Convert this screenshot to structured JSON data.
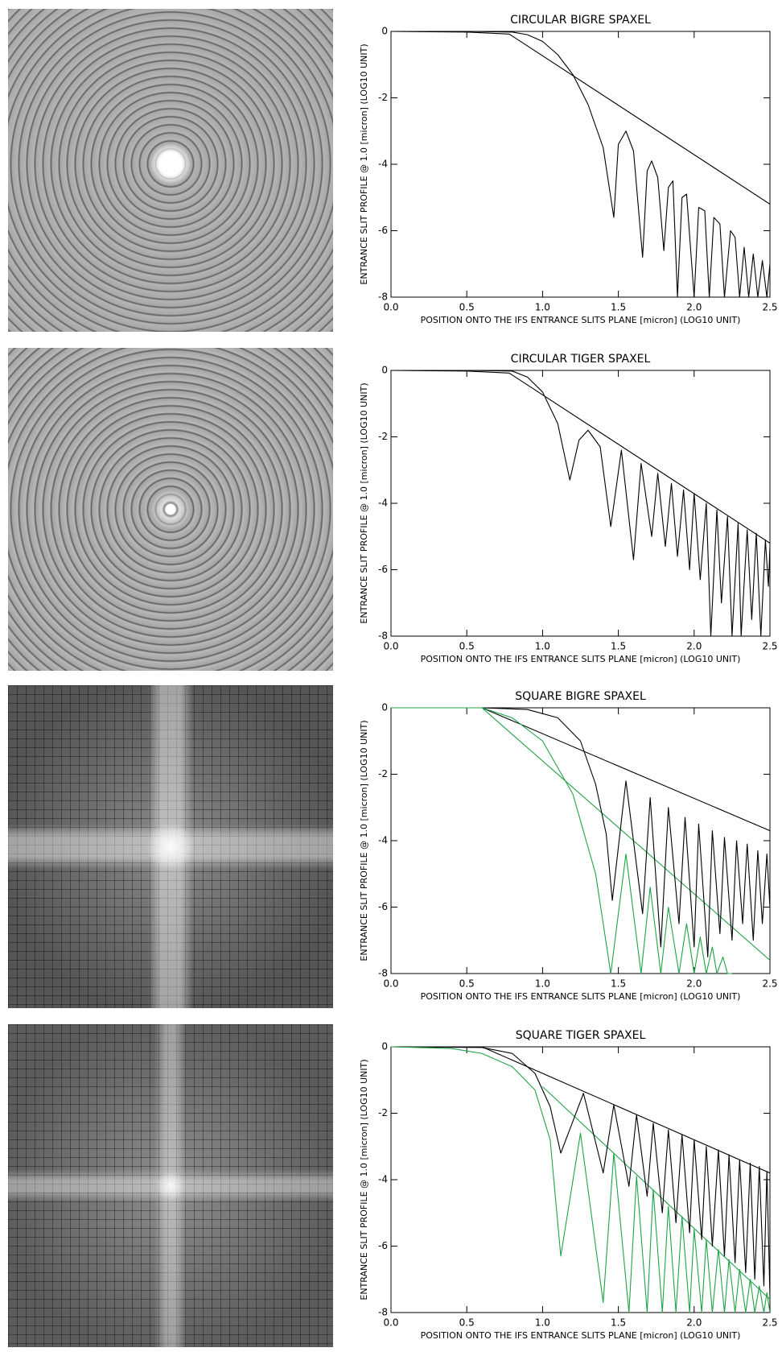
{
  "chart_data": [
    {
      "type": "line",
      "title": "CIRCULAR BIGRE SPAXEL",
      "x_label": "POSITION ONTO THE IFS ENTRANCE SLITS PLANE [micron] (LOG10 UNIT)",
      "y_label": "ENTRANCE SLIT PROFILE @ 1.0 [micron] (LOG10 UNIT)",
      "xlim": [
        0,
        2.5
      ],
      "ylim": [
        -8,
        0
      ],
      "xticks": [
        {
          "value": 0,
          "label": "0.0"
        },
        0.5,
        {
          "value": 1,
          "label": "1.0"
        },
        1.5,
        {
          "value": 2,
          "label": "2.0"
        },
        2.5
      ],
      "yticks": [
        0,
        -2,
        -4,
        -6,
        -8
      ],
      "series": [
        {
          "color": "#000000",
          "x": [
            0,
            0.5,
            0.78,
            2.5
          ],
          "values": [
            0,
            -0.02,
            -0.08,
            -5.2
          ]
        },
        {
          "color": "#000000",
          "x": [
            0,
            0.5,
            0.8,
            0.9,
            1.0,
            1.1,
            1.2,
            1.3,
            1.4,
            1.47,
            1.5,
            1.55,
            1.6,
            1.66,
            1.69,
            1.72,
            1.76,
            1.8,
            1.83,
            1.86,
            1.89,
            1.92,
            1.95,
            2.0,
            2.03,
            2.07,
            2.1,
            2.13,
            2.17,
            2.2,
            2.24,
            2.27,
            2.3,
            2.33,
            2.36,
            2.39,
            2.42,
            2.45,
            2.48,
            2.5
          ],
          "values": [
            0,
            0,
            -0.02,
            -0.1,
            -0.3,
            -0.7,
            -1.3,
            -2.2,
            -3.5,
            -5.6,
            -3.4,
            -3.0,
            -3.6,
            -6.8,
            -4.2,
            -3.9,
            -4.4,
            -6.6,
            -4.7,
            -4.5,
            -8,
            -5.0,
            -4.9,
            -8,
            -5.3,
            -5.4,
            -8,
            -5.6,
            -5.8,
            -8,
            -6.0,
            -6.2,
            -8,
            -6.5,
            -8,
            -6.7,
            -8,
            -6.9,
            -8,
            -7.0
          ]
        }
      ]
    },
    {
      "type": "line",
      "title": "CIRCULAR TIGER SPAXEL",
      "x_label": "POSITION ONTO THE IFS ENTRANCE SLITS PLANE [micron] (LOG10 UNIT)",
      "y_label": "ENTRANCE SLIT PROFILE @ 1.0 [micron] (LOG10 UNIT)",
      "xlim": [
        0,
        2.5
      ],
      "ylim": [
        -8,
        0
      ],
      "xticks": [
        {
          "value": 0,
          "label": "0.0"
        },
        0.5,
        {
          "value": 1,
          "label": "1.0"
        },
        1.5,
        {
          "value": 2,
          "label": "2.0"
        },
        2.5
      ],
      "yticks": [
        0,
        -2,
        -4,
        -6,
        -8
      ],
      "series": [
        {
          "color": "#000000",
          "x": [
            0,
            0.5,
            0.78,
            2.5
          ],
          "values": [
            0,
            -0.02,
            -0.08,
            -5.2
          ]
        },
        {
          "color": "#000000",
          "x": [
            0,
            0.5,
            0.8,
            0.9,
            1.0,
            1.1,
            1.18,
            1.24,
            1.3,
            1.38,
            1.45,
            1.52,
            1.6,
            1.65,
            1.72,
            1.76,
            1.81,
            1.85,
            1.89,
            1.93,
            1.97,
            2.0,
            2.04,
            2.08,
            2.11,
            2.15,
            2.18,
            2.22,
            2.25,
            2.29,
            2.31,
            2.35,
            2.38,
            2.41,
            2.44,
            2.47,
            2.49,
            2.5
          ],
          "values": [
            0,
            0,
            -0.02,
            -0.2,
            -0.65,
            -1.6,
            -3.3,
            -2.1,
            -1.8,
            -2.3,
            -4.7,
            -2.4,
            -5.7,
            -2.8,
            -5.0,
            -3.1,
            -5.3,
            -3.4,
            -5.6,
            -3.6,
            -6.0,
            -3.7,
            -6.3,
            -4.0,
            -8,
            -4.2,
            -7.0,
            -4.4,
            -8,
            -4.6,
            -8,
            -4.8,
            -7.5,
            -4.9,
            -8,
            -5.1,
            -6.5,
            -5.3
          ]
        }
      ]
    },
    {
      "type": "line",
      "title": "SQUARE BIGRE SPAXEL",
      "x_label": "POSITION ONTO THE IFS ENTRANCE SLITS PLANE [micron] (LOG10 UNIT)",
      "y_label": "ENTRANCE SLIT PROFILE @ 1.0 [micron] (LOG10 UNIT)",
      "xlim": [
        0,
        2.5
      ],
      "ylim": [
        -8,
        0
      ],
      "xticks": [
        {
          "value": 0,
          "label": "0.0"
        },
        0.5,
        {
          "value": 1,
          "label": "1.0"
        },
        1.5,
        {
          "value": 2,
          "label": "2.0"
        },
        2.5
      ],
      "yticks": [
        0,
        -2,
        -4,
        -6,
        -8
      ],
      "series": [
        {
          "color": "#000000",
          "x": [
            0,
            0.6,
            2.5
          ],
          "values": [
            0,
            0,
            -3.7
          ]
        },
        {
          "color": "#1fa347",
          "x": [
            0,
            0.6,
            2.5
          ],
          "values": [
            0,
            0,
            -7.6
          ]
        },
        {
          "color": "#000000",
          "x": [
            0,
            0.6,
            0.9,
            1.1,
            1.25,
            1.35,
            1.42,
            1.46,
            1.55,
            1.66,
            1.71,
            1.78,
            1.83,
            1.9,
            1.94,
            2.0,
            2.03,
            2.09,
            2.12,
            2.17,
            2.2,
            2.25,
            2.28,
            2.32,
            2.35,
            2.39,
            2.42,
            2.45,
            2.48,
            2.5
          ],
          "values": [
            0,
            0,
            -0.05,
            -0.3,
            -1.0,
            -2.3,
            -3.8,
            -5.8,
            -2.2,
            -6.2,
            -2.7,
            -7.2,
            -3.0,
            -6.5,
            -3.3,
            -7.2,
            -3.5,
            -7.5,
            -3.7,
            -6.8,
            -3.9,
            -7.0,
            -4.0,
            -6.5,
            -4.1,
            -7.0,
            -4.3,
            -6.5,
            -4.4,
            -6.0
          ]
        },
        {
          "color": "#1fa347",
          "x": [
            0,
            0.6,
            0.8,
            1.0,
            1.2,
            1.35,
            1.45,
            1.55,
            1.65,
            1.71,
            1.78,
            1.83,
            1.9,
            1.95,
            2.0,
            2.04,
            2.08,
            2.12,
            2.15,
            2.19,
            2.22,
            2.25
          ],
          "values": [
            0,
            0,
            -0.3,
            -1.0,
            -2.6,
            -5.0,
            -8,
            -4.4,
            -8,
            -5.4,
            -8,
            -6.0,
            -8,
            -6.5,
            -8,
            -6.9,
            -8,
            -7.2,
            -8,
            -7.5,
            -8,
            -8
          ]
        }
      ]
    },
    {
      "type": "line",
      "title": "SQUARE TIGER SPAXEL",
      "x_label": "POSITION ONTO THE IFS ENTRANCE SLITS PLANE [micron] (LOG10 UNIT)",
      "y_label": "ENTRANCE SLIT PROFILE @ 1.0 [micron] (LOG10 UNIT)",
      "xlim": [
        0,
        2.5
      ],
      "ylim": [
        -8,
        0
      ],
      "xticks": [
        {
          "value": 0,
          "label": "0.0"
        },
        0.5,
        {
          "value": 1,
          "label": "1.0"
        },
        1.5,
        {
          "value": 2,
          "label": "2.0"
        },
        2.5
      ],
      "yticks": [
        0,
        -2,
        -4,
        -6,
        -8
      ],
      "series": [
        {
          "color": "#000000",
          "x": [
            0,
            0.6,
            2.5
          ],
          "values": [
            0,
            0,
            -3.8
          ]
        },
        {
          "color": "#1fa347",
          "x": [
            1.0,
            2.5
          ],
          "values": [
            -1.2,
            -7.6
          ]
        },
        {
          "color": "#000000",
          "x": [
            0,
            0.6,
            0.8,
            0.95,
            1.05,
            1.12,
            1.27,
            1.4,
            1.47,
            1.57,
            1.62,
            1.69,
            1.73,
            1.79,
            1.83,
            1.88,
            1.92,
            1.97,
            2.0,
            2.05,
            2.08,
            2.12,
            2.16,
            2.2,
            2.23,
            2.27,
            2.3,
            2.34,
            2.37,
            2.4,
            2.43,
            2.46,
            2.48,
            2.5
          ],
          "values": [
            0,
            -0.02,
            -0.2,
            -0.8,
            -1.8,
            -3.2,
            -1.4,
            -3.8,
            -1.75,
            -4.2,
            -2.05,
            -4.5,
            -2.3,
            -5.0,
            -2.5,
            -5.3,
            -2.65,
            -5.6,
            -2.8,
            -5.8,
            -3.0,
            -6.0,
            -3.1,
            -6.3,
            -3.25,
            -6.5,
            -3.4,
            -6.8,
            -3.5,
            -7.0,
            -3.6,
            -7.2,
            -3.75,
            -7.5
          ]
        },
        {
          "color": "#1fa347",
          "x": [
            0,
            0.4,
            0.6,
            0.8,
            0.95,
            1.05,
            1.12,
            1.25,
            1.4,
            1.47,
            1.57,
            1.62,
            1.69,
            1.73,
            1.79,
            1.83,
            1.88,
            1.92,
            1.97,
            2.0,
            2.05,
            2.08,
            2.12,
            2.16,
            2.2,
            2.23,
            2.27,
            2.3,
            2.34,
            2.37,
            2.4,
            2.43,
            2.46,
            2.48,
            2.5
          ],
          "values": [
            0,
            -0.05,
            -0.2,
            -0.6,
            -1.3,
            -2.8,
            -6.3,
            -2.6,
            -7.7,
            -3.2,
            -8,
            -3.9,
            -8,
            -4.3,
            -8,
            -4.8,
            -8,
            -5.1,
            -8,
            -5.5,
            -8,
            -5.8,
            -8,
            -6.1,
            -8,
            -6.4,
            -8,
            -6.7,
            -8,
            -7.0,
            -8,
            -7.2,
            -8,
            -7.4,
            -8
          ]
        }
      ]
    }
  ]
}
